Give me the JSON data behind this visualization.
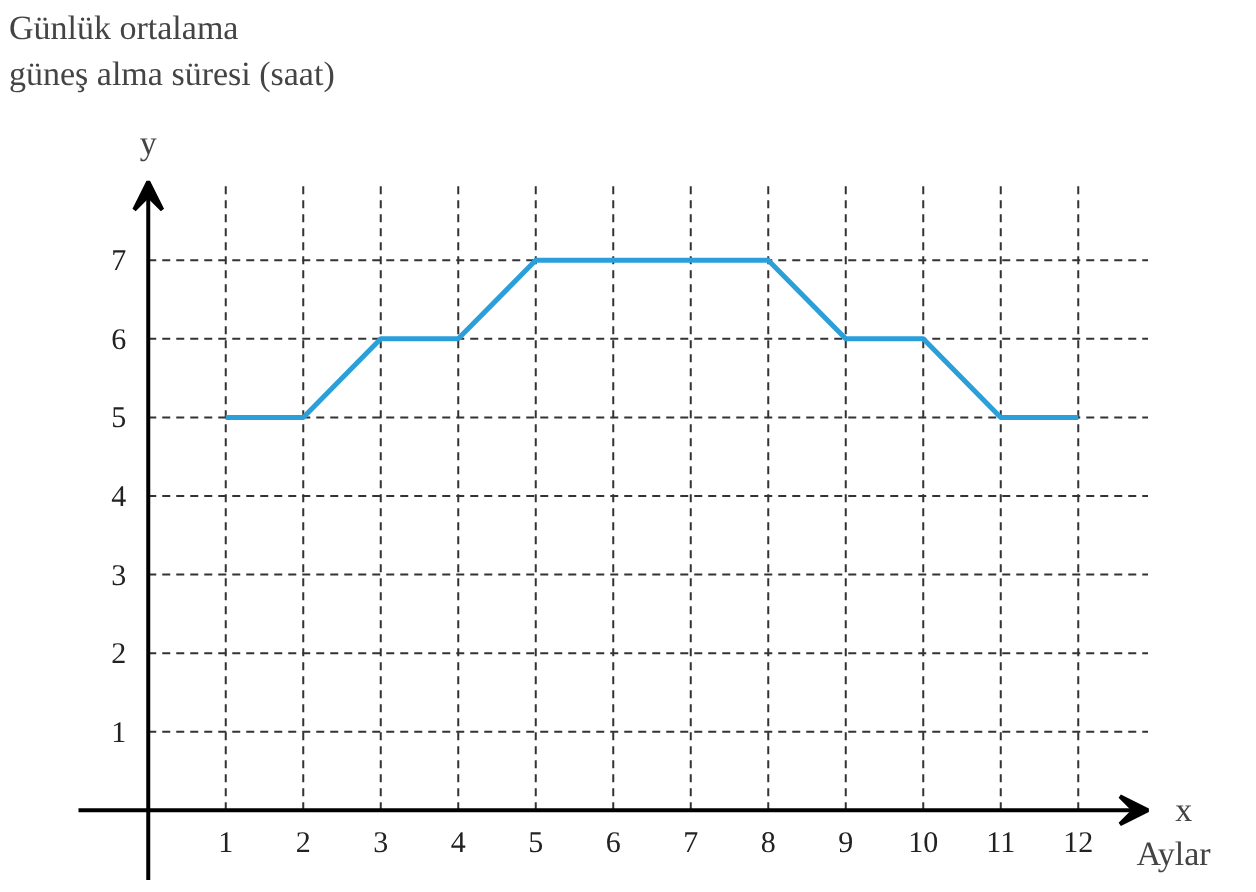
{
  "chart_data": {
    "type": "line",
    "title": "Günlük ortalama\ngüneş alma süresi (saat)",
    "xlabel": "x",
    "ylabel": "y",
    "annotations": [
      "Aylar"
    ],
    "x": [
      1,
      2,
      3,
      4,
      5,
      6,
      7,
      8,
      9,
      10,
      11,
      12
    ],
    "series": [
      {
        "color": "#2b9fd9",
        "values": [
          5,
          5,
          6,
          6,
          7,
          7,
          7,
          7,
          6,
          6,
          5,
          5
        ]
      }
    ],
    "xlim": [
      -0.9,
      12.9
    ],
    "ylim": [
      -0.9,
      8.0
    ],
    "xticks": [
      1,
      2,
      3,
      4,
      5,
      6,
      7,
      8,
      9,
      10,
      11,
      12
    ],
    "yticks": [
      1,
      2,
      3,
      4,
      5,
      6,
      7
    ],
    "grid": true,
    "marker": "none",
    "line_style": "solid"
  }
}
